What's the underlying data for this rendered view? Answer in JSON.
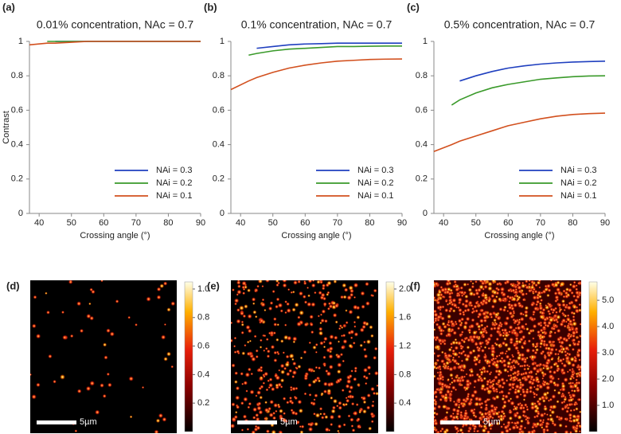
{
  "chart_data": [
    {
      "type": "line",
      "label": "(a)",
      "title": "0.01% concentration, NAc = 0.7",
      "xlabel": "Crossing angle (°)",
      "ylabel": "Contrast",
      "x": [
        37,
        42.5,
        45,
        50,
        55,
        60,
        65,
        70,
        75,
        80,
        85,
        90
      ],
      "series": [
        {
          "name": "NAi = 0.3",
          "color": "#1f3fbf",
          "values": [
            null,
            null,
            1,
            1,
            1,
            1,
            1,
            1,
            1,
            1,
            1,
            1
          ]
        },
        {
          "name": "NAi = 0.2",
          "color": "#3a9a2a",
          "values": [
            null,
            1,
            1,
            1,
            1,
            1,
            1,
            1,
            1,
            1,
            1,
            1
          ]
        },
        {
          "name": "NAi = 0.1",
          "color": "#d2501e",
          "values": [
            0.98,
            0.99,
            0.99,
            0.995,
            1,
            1,
            1,
            1,
            1,
            1,
            1,
            1
          ]
        }
      ],
      "xlim": [
        37,
        90
      ],
      "ylim": [
        0,
        1
      ],
      "xticks": [
        40,
        50,
        60,
        70,
        80,
        90
      ],
      "yticks": [
        0,
        0.2,
        0.4,
        0.6,
        0.8,
        1
      ],
      "legend": "lower right"
    },
    {
      "type": "line",
      "label": "(b)",
      "title": "0.1% concentration, NAc = 0.7",
      "xlabel": "Crossing angle (°)",
      "x": [
        37,
        42.5,
        45,
        50,
        55,
        60,
        65,
        70,
        75,
        80,
        85,
        90
      ],
      "series": [
        {
          "name": "NAi = 0.3",
          "color": "#1f3fbf",
          "values": [
            null,
            null,
            0.96,
            0.97,
            0.98,
            0.985,
            0.987,
            0.99,
            0.99,
            0.99,
            0.99,
            0.99
          ]
        },
        {
          "name": "NAi = 0.2",
          "color": "#3a9a2a",
          "values": [
            null,
            0.92,
            0.93,
            0.945,
            0.955,
            0.96,
            0.965,
            0.97,
            0.97,
            0.972,
            0.973,
            0.973
          ]
        },
        {
          "name": "NAi = 0.1",
          "color": "#d2501e",
          "values": [
            0.72,
            0.77,
            0.79,
            0.82,
            0.845,
            0.862,
            0.875,
            0.885,
            0.89,
            0.895,
            0.897,
            0.898
          ]
        }
      ],
      "xlim": [
        37,
        90
      ],
      "ylim": [
        0,
        1
      ],
      "xticks": [
        40,
        50,
        60,
        70,
        80,
        90
      ],
      "yticks": [
        0,
        0.2,
        0.4,
        0.6,
        0.8,
        1
      ],
      "legend": "lower right"
    },
    {
      "type": "line",
      "label": "(c)",
      "title": "0.5% concentration, NAc = 0.7",
      "xlabel": "Crossing angle (°)",
      "x": [
        37,
        42.5,
        45,
        50,
        55,
        60,
        65,
        70,
        75,
        80,
        85,
        90
      ],
      "series": [
        {
          "name": "NAi = 0.3",
          "color": "#1f3fbf",
          "values": [
            null,
            null,
            0.77,
            0.8,
            0.825,
            0.845,
            0.858,
            0.868,
            0.875,
            0.88,
            0.883,
            0.885
          ]
        },
        {
          "name": "NAi = 0.2",
          "color": "#3a9a2a",
          "values": [
            null,
            0.63,
            0.66,
            0.7,
            0.73,
            0.75,
            0.765,
            0.78,
            0.788,
            0.795,
            0.799,
            0.8
          ]
        },
        {
          "name": "NAi = 0.1",
          "color": "#d2501e",
          "values": [
            0.36,
            0.4,
            0.42,
            0.45,
            0.48,
            0.51,
            0.53,
            0.55,
            0.565,
            0.575,
            0.58,
            0.583
          ]
        }
      ],
      "xlim": [
        37,
        90
      ],
      "ylim": [
        0,
        1
      ],
      "xticks": [
        40,
        50,
        60,
        70,
        80,
        90
      ],
      "yticks": [
        0,
        0.2,
        0.4,
        0.6,
        0.8,
        1
      ],
      "legend": "lower right"
    },
    {
      "type": "heatmap",
      "label": "(d)",
      "scale_bar": "5µm",
      "colorbar_lim": [
        0,
        1.05
      ],
      "colorbar_ticks": [
        0.2,
        0.4,
        0.6,
        0.8,
        {
          "value": 1,
          "label": "1.0"
        }
      ]
    },
    {
      "type": "heatmap",
      "label": "(e)",
      "scale_bar": "5µm",
      "colorbar_lim": [
        0,
        2.1
      ],
      "colorbar_ticks": [
        0.4,
        0.8,
        1.2,
        1.6,
        {
          "value": 2,
          "label": "2.0"
        }
      ]
    },
    {
      "type": "heatmap",
      "label": "(f)",
      "scale_bar": "5µm",
      "colorbar_lim": [
        0,
        5.7
      ],
      "colorbar_ticks": [
        {
          "value": 1,
          "label": "1.0"
        },
        {
          "value": 2,
          "label": "2.0"
        },
        {
          "value": 3,
          "label": "3.0"
        },
        {
          "value": 4,
          "label": "4.0"
        },
        {
          "value": 5,
          "label": "5.0"
        }
      ]
    }
  ]
}
